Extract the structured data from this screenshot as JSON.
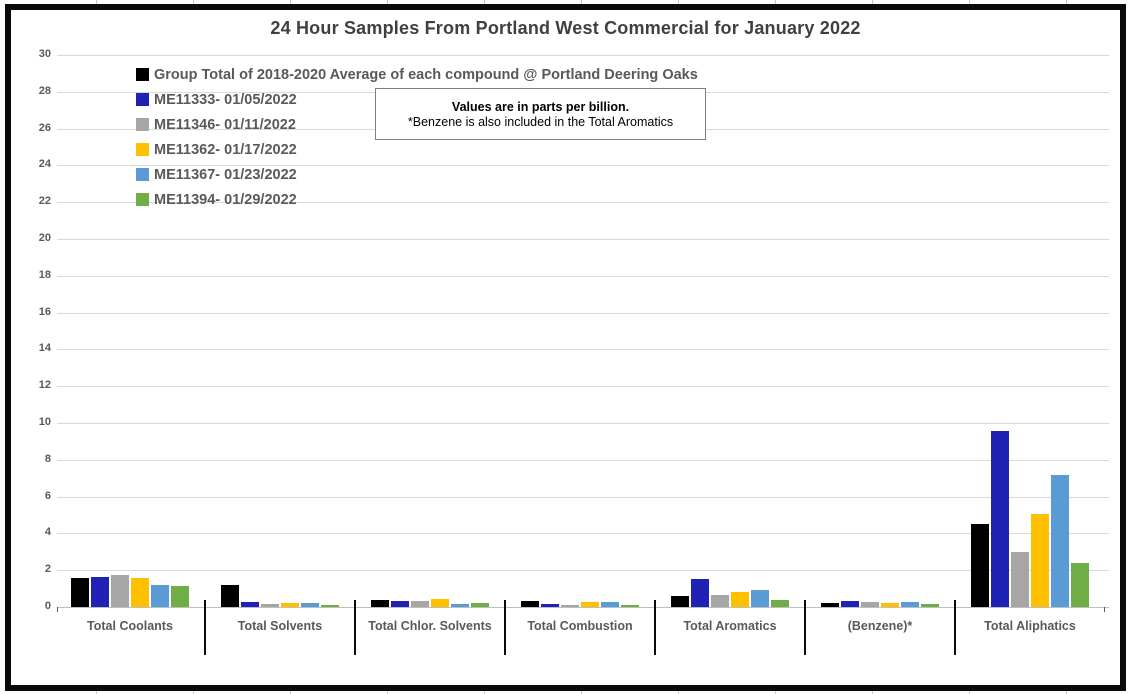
{
  "chart_data": {
    "type": "bar",
    "title": "24 Hour Samples From Portland West Commercial for January 2022",
    "unit": "parts per billion",
    "categories": [
      "Total Coolants",
      "Total Solvents",
      "Total Chlor. Solvents",
      "Total Combustion",
      "Total Aromatics",
      "(Benzene)*",
      "Total Aliphatics"
    ],
    "series": [
      {
        "name": "Group Total of 2018-2020 Average of each compound @ Portland Deering Oaks",
        "color": "#000000",
        "values": [
          1.55,
          1.2,
          0.38,
          0.33,
          0.6,
          0.22,
          4.5
        ]
      },
      {
        "name": "ME11333- 01/05/2022",
        "color": "#1f22b4",
        "values": [
          1.65,
          0.28,
          0.33,
          0.19,
          1.5,
          0.35,
          9.55
        ]
      },
      {
        "name": "ME11346- 01/11/2022",
        "color": "#a6a6a6",
        "values": [
          1.75,
          0.17,
          0.3,
          0.1,
          0.65,
          0.27,
          3.0
        ]
      },
      {
        "name": "ME11362- 01/17/2022",
        "color": "#ffc000",
        "values": [
          1.6,
          0.22,
          0.44,
          0.26,
          0.8,
          0.2,
          5.05
        ]
      },
      {
        "name": "ME11367- 01/23/2022",
        "color": "#5b9bd5",
        "values": [
          1.2,
          0.24,
          0.19,
          0.26,
          0.9,
          0.28,
          7.15
        ]
      },
      {
        "name": "ME11394- 01/29/2022",
        "color": "#70ad47",
        "values": [
          1.15,
          0.12,
          0.22,
          0.1,
          0.4,
          0.17,
          2.4
        ]
      }
    ],
    "ylim": [
      0,
      30
    ],
    "ytick_step": 2,
    "grid": true,
    "legend_position": "top-left",
    "axis_color": "#bfbfbf",
    "gridline_color": "#d9d9d9"
  },
  "note": {
    "line1": "Values are in parts per billion.",
    "line2": "*Benzene is also included in the Total Aromatics"
  }
}
